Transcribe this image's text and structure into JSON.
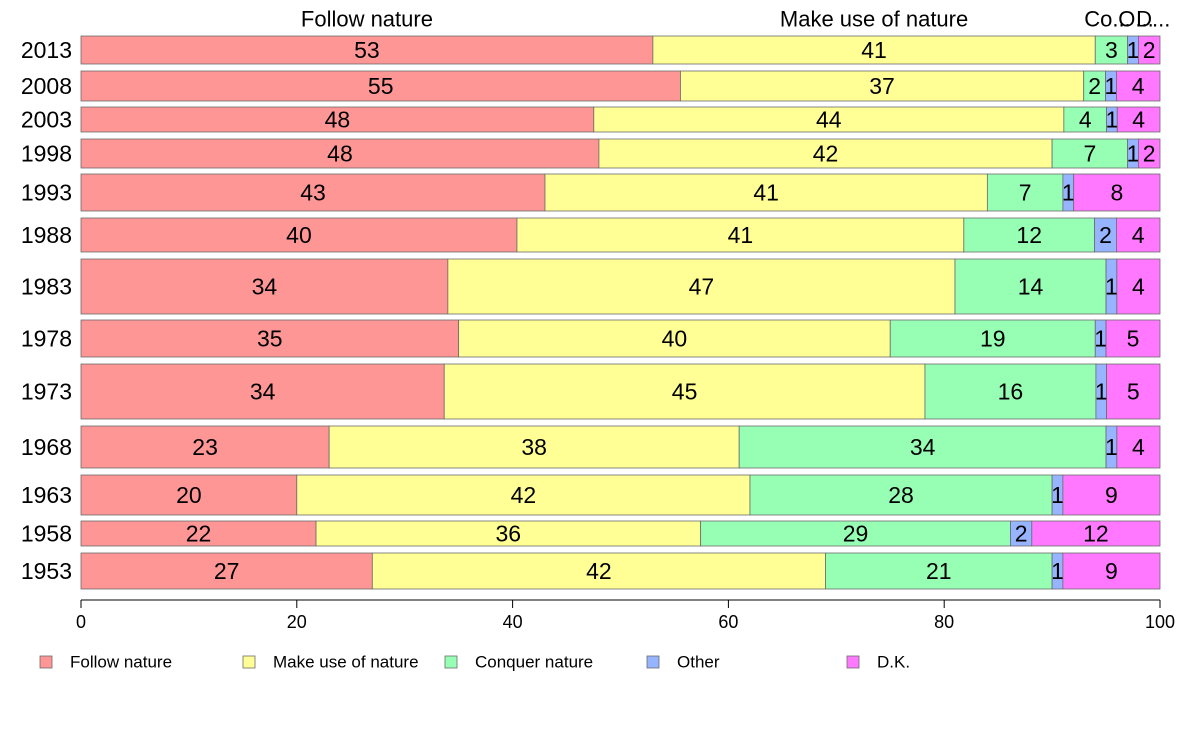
{
  "chart_data": {
    "type": "bar",
    "orientation": "horizontal",
    "stacked": true,
    "variable_width": true,
    "categories": [
      "2013",
      "2008",
      "2003",
      "1998",
      "1993",
      "1988",
      "1983",
      "1978",
      "1973",
      "1968",
      "1963",
      "1958",
      "1953"
    ],
    "series": [
      {
        "name": "Follow nature",
        "color": "#FF9696",
        "values": [
          53,
          55,
          48,
          48,
          43,
          40,
          34,
          35,
          34,
          23,
          20,
          22,
          27
        ]
      },
      {
        "name": "Make use of nature",
        "color": "#FFFF96",
        "values": [
          41,
          37,
          44,
          42,
          41,
          41,
          47,
          40,
          45,
          38,
          42,
          36,
          42
        ]
      },
      {
        "name": "Conquer nature",
        "color": "#96FFB4",
        "values": [
          3,
          2,
          4,
          7,
          7,
          12,
          14,
          19,
          16,
          34,
          28,
          29,
          21
        ]
      },
      {
        "name": "Other",
        "color": "#96B4FF",
        "values": [
          1,
          1,
          1,
          1,
          1,
          2,
          1,
          1,
          1,
          1,
          1,
          2,
          1
        ]
      },
      {
        "name": "D.K.",
        "color": "#FF78FF",
        "values": [
          2,
          4,
          4,
          2,
          8,
          4,
          4,
          5,
          5,
          4,
          9,
          12,
          9
        ]
      }
    ],
    "header_labels": [
      "Follow nature",
      "Make use of nature",
      "Co...",
      "O...",
      "D..."
    ],
    "xlim": [
      0,
      100
    ],
    "xticks": [
      "0",
      "20",
      "40",
      "60",
      "80",
      "100"
    ],
    "title": "",
    "xlabel": "",
    "ylabel": "",
    "grid": false,
    "legend_position": "bottom"
  }
}
